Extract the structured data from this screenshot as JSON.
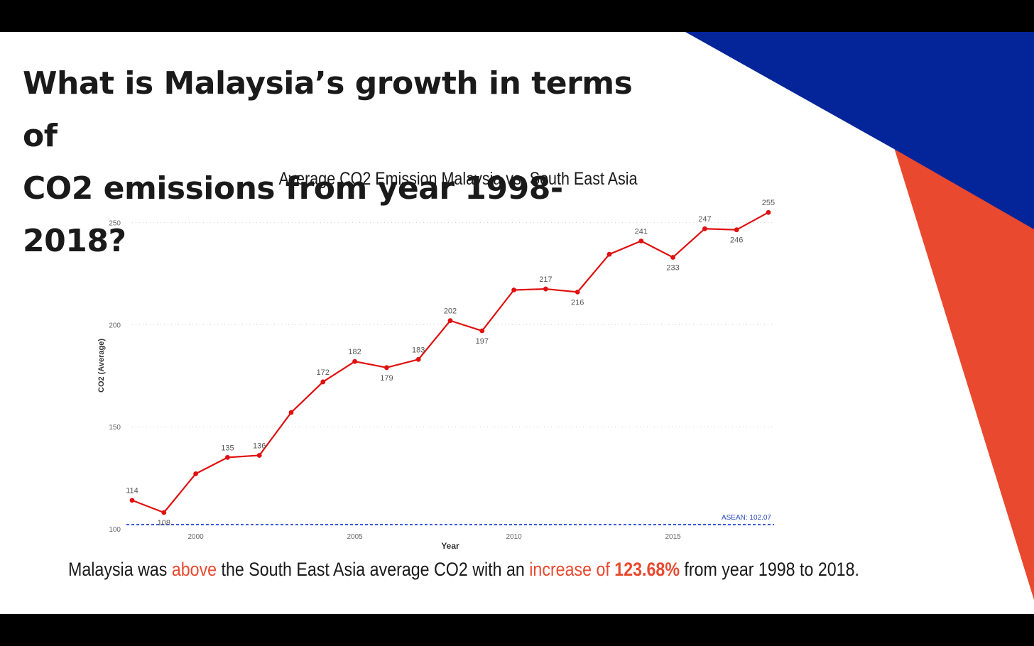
{
  "slide": {
    "headline_line1": "What is Malaysia’s growth in terms of",
    "headline_line2": "CO2 emissions from year 1998-2018?",
    "caption": {
      "part1": "Malaysia was ",
      "highlight1": "above",
      "part2": " the South East Asia average CO2 with an ",
      "highlight2": "increase of ",
      "highlight3": "123.68%",
      "part3": " from year 1998 to 2018."
    },
    "colors": {
      "accent_red": "#e8492f",
      "accent_blue": "#04259a",
      "series_line": "#e01010",
      "reference_line": "#3b5bdb"
    }
  },
  "chart_data": {
    "type": "line",
    "title": "Average CO2 Emission Malaysia vs. South East Asia",
    "xlabel": "Year",
    "ylabel": "CO2 (Average)",
    "x": [
      1998,
      1999,
      2000,
      2001,
      2002,
      2003,
      2004,
      2005,
      2006,
      2007,
      2008,
      2009,
      2010,
      2011,
      2012,
      2013,
      2014,
      2015,
      2016,
      2017,
      2018
    ],
    "series": [
      {
        "values": [
          114,
          108,
          127,
          135,
          136,
          157,
          172,
          182,
          179,
          183,
          202,
          197,
          217,
          217.5,
          216,
          234.5,
          241,
          233,
          247,
          246.5,
          255
        ],
        "point_labels": [
          "114",
          "108",
          "",
          "135",
          "136",
          "",
          "172",
          "182",
          "179",
          "183",
          "202",
          "197",
          "",
          "217",
          "216",
          "",
          "241",
          "233",
          "247",
          "246",
          "255"
        ]
      }
    ],
    "reference_line": {
      "label": "ASEAN: 102.07",
      "value": 102.07
    },
    "xticks": [
      "2000",
      "2005",
      "2010",
      "2015"
    ],
    "xtick_values": [
      2000,
      2005,
      2010,
      2015
    ],
    "yticks": [
      "100",
      "150",
      "200",
      "250"
    ],
    "ytick_values": [
      100,
      150,
      200,
      250
    ],
    "ylim": [
      100,
      260
    ],
    "xlim": [
      1998,
      2018
    ],
    "grid": true,
    "legend": "none"
  }
}
